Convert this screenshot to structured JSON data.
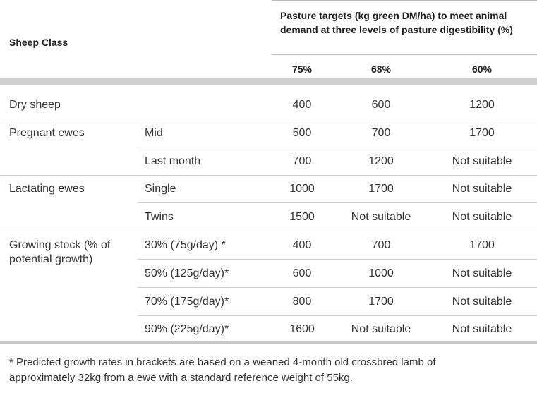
{
  "header": {
    "sheep_class": "Sheep Class",
    "pasture_targets": "Pasture targets (kg green DM/ha) to meet animal demand at three levels of pasture digestibility (%)",
    "levels": [
      "75%",
      "68%",
      "60%"
    ]
  },
  "rows": [
    {
      "class": "Dry sheep",
      "values": [
        400,
        600,
        1200
      ]
    },
    {
      "class": "Pregnant ewes",
      "sub": "Mid",
      "values": [
        500,
        700,
        1700
      ]
    },
    {
      "sub": "Last month",
      "values": [
        700,
        1200,
        "Not suitable"
      ]
    },
    {
      "class": "Lactating ewes",
      "sub": "Single",
      "values": [
        1000,
        1700,
        "Not suitable"
      ]
    },
    {
      "sub": "Twins",
      "values": [
        1500,
        "Not suitable",
        "Not suitable"
      ]
    },
    {
      "class": "Growing stock (% of potential growth)",
      "sub": "30% (75g/day) *",
      "values": [
        400,
        700,
        1700
      ]
    },
    {
      "sub": "50% (125g/day)*",
      "values": [
        600,
        1000,
        "Not suitable"
      ]
    },
    {
      "sub": "70% (175g/day)*",
      "values": [
        800,
        1700,
        "Not suitable"
      ]
    },
    {
      "sub": "90% (225g/day)*",
      "values": [
        1600,
        "Not suitable",
        "Not suitable"
      ]
    }
  ],
  "footnote": "* Predicted growth rates in brackets are based on a weaned 4-month old crossbred lamb of approximately 32kg from a ewe with a standard reference weight of 55kg."
}
